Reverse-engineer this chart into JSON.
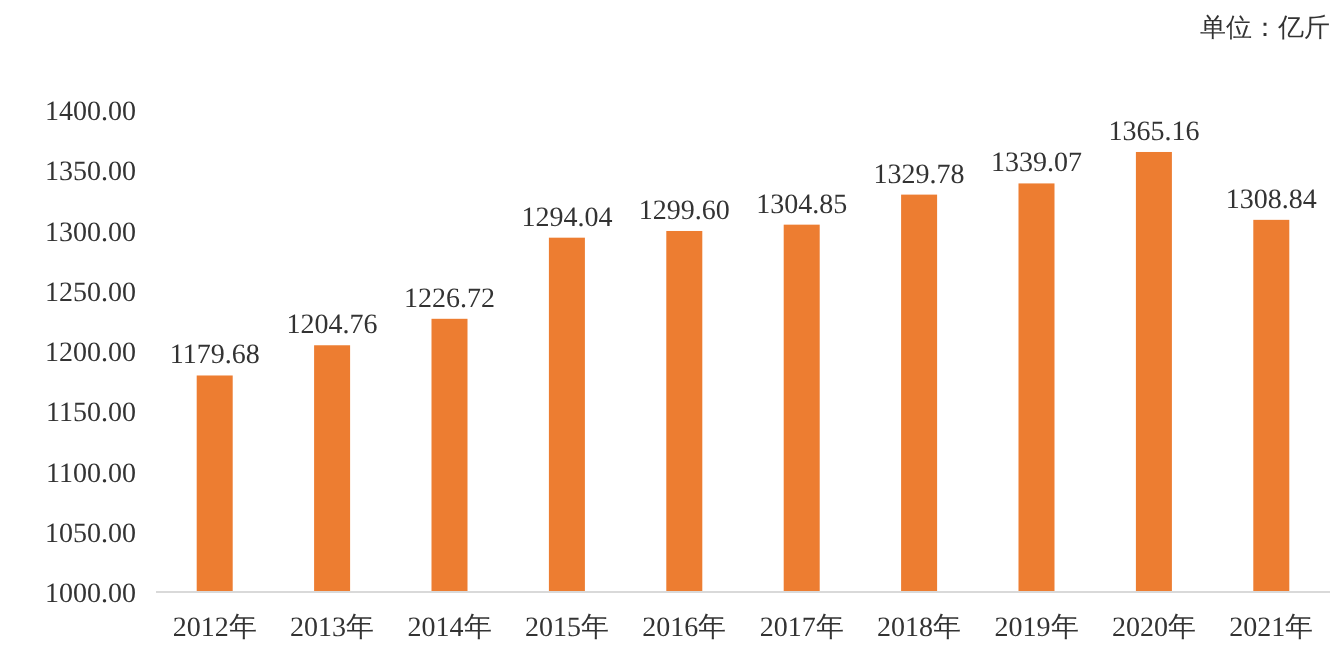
{
  "chart_data": {
    "type": "bar",
    "categories": [
      "2012年",
      "2013年",
      "2014年",
      "2015年",
      "2016年",
      "2017年",
      "2018年",
      "2019年",
      "2020年",
      "2021年"
    ],
    "values": [
      1179.68,
      1204.76,
      1226.72,
      1294.04,
      1299.6,
      1304.85,
      1329.78,
      1339.07,
      1365.16,
      1308.84
    ],
    "value_labels": [
      "1179.68",
      "1204.76",
      "1226.72",
      "1294.04",
      "1299.60",
      "1304.85",
      "1329.78",
      "1339.07",
      "1365.16",
      "1308.84"
    ],
    "color": "#ed7d31",
    "ylim": [
      1000,
      1400
    ],
    "yticks": [
      {
        "value": 1000,
        "label": "1000.00"
      },
      {
        "value": 1050,
        "label": "1050.00"
      },
      {
        "value": 1100,
        "label": "1100.00"
      },
      {
        "value": 1150,
        "label": "1150.00"
      },
      {
        "value": 1200,
        "label": "1200.00"
      },
      {
        "value": 1250,
        "label": "1250.00"
      },
      {
        "value": 1300,
        "label": "1300.00"
      },
      {
        "value": 1350,
        "label": "1350.00"
      },
      {
        "value": 1400,
        "label": "1400.00"
      }
    ],
    "annotations": [
      "单位：亿斤"
    ]
  }
}
